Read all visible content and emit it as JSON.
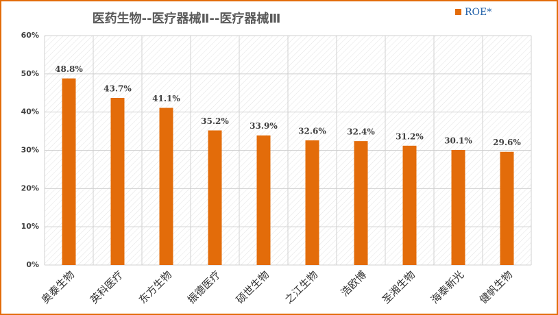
{
  "chart_data": {
    "type": "bar",
    "title": "医药生物--医疗器械Ⅱ--医疗器械Ⅲ",
    "categories": [
      "奥泰生物",
      "英科医疗",
      "东方生物",
      "振德医疗",
      "硕世生物",
      "之江生物",
      "浩欧博",
      "圣湘生物",
      "海泰新光",
      "健帆生物"
    ],
    "series": [
      {
        "name": "ROE*",
        "color": "#e36c0a",
        "values": [
          48.8,
          43.7,
          41.1,
          35.2,
          33.9,
          32.6,
          32.4,
          31.2,
          30.1,
          29.6
        ],
        "value_labels": [
          "48.8%",
          "43.7%",
          "41.1%",
          "35.2%",
          "33.9%",
          "32.6%",
          "32.4%",
          "31.2%",
          "30.1%",
          "29.6%"
        ]
      }
    ],
    "ylim": [
      0,
      60
    ],
    "yticks": [
      {
        "value": 0,
        "label": "0%"
      },
      {
        "value": 10,
        "label": "10%"
      },
      {
        "value": 20,
        "label": "20%"
      },
      {
        "value": 30,
        "label": "30%"
      },
      {
        "value": 40,
        "label": "40%"
      },
      {
        "value": 50,
        "label": "50%"
      },
      {
        "value": 60,
        "label": "60%"
      }
    ],
    "grid": true,
    "legend": "upper right"
  }
}
